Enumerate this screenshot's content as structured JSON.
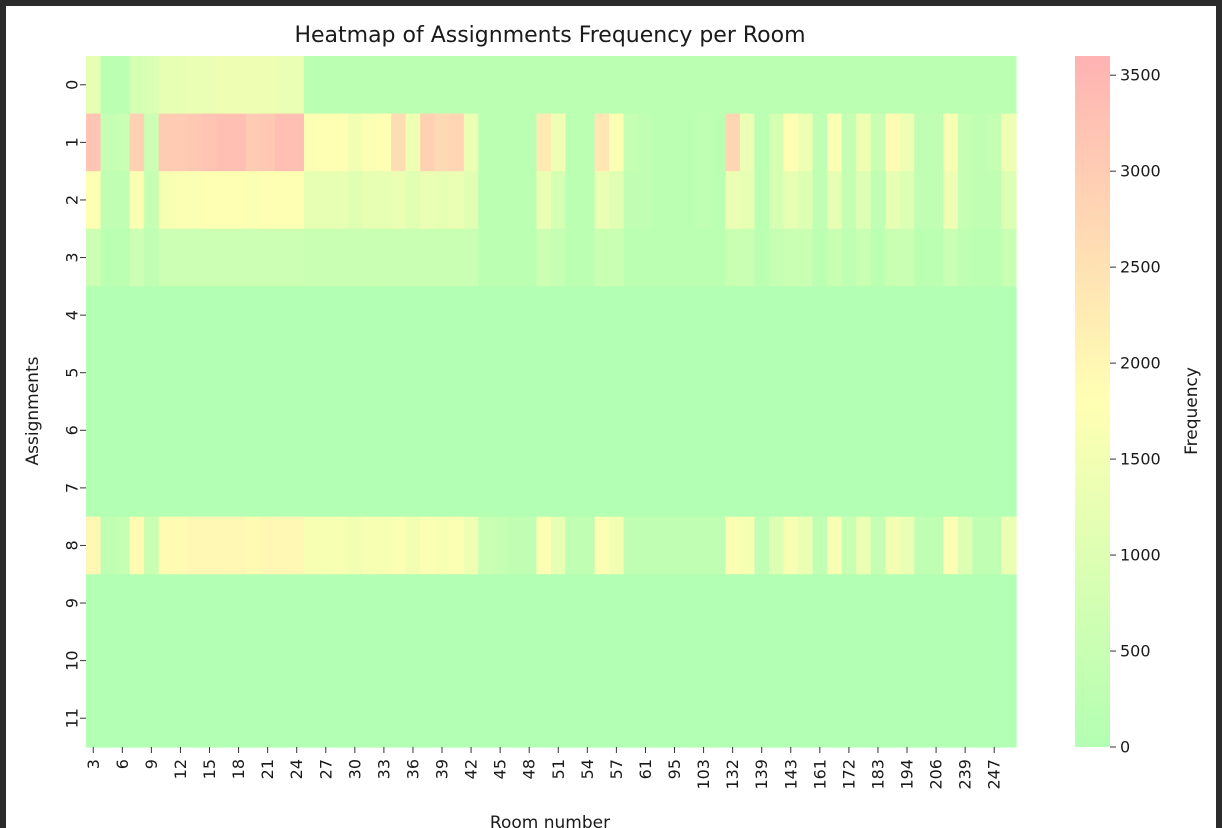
{
  "chart_data": {
    "type": "heatmap",
    "title": "Heatmap of Assignments Frequency per Room",
    "xlabel": "Room number",
    "ylabel": "Assignments",
    "colorbar_label": "Frequency",
    "colorbar_ticks": [
      0,
      500,
      1000,
      1500,
      2000,
      2500,
      3000,
      3500
    ],
    "value_range": [
      0,
      3600
    ],
    "colormap": [
      "#b3ffb3",
      "#ffffb3",
      "#ffb3b3"
    ],
    "x_tick_labels": [
      "3",
      "6",
      "9",
      "12",
      "15",
      "18",
      "21",
      "24",
      "27",
      "30",
      "33",
      "36",
      "39",
      "42",
      "45",
      "48",
      "51",
      "54",
      "57",
      "61",
      "95",
      "103",
      "132",
      "139",
      "143",
      "161",
      "172",
      "183",
      "194",
      "206",
      "239",
      "247"
    ],
    "y_tick_labels": [
      "0",
      "1",
      "2",
      "3",
      "4",
      "5",
      "6",
      "7",
      "8",
      "9",
      "10",
      "11"
    ],
    "columns_count": 64,
    "values": [
      [
        1200,
        200,
        200,
        800,
        900,
        1200,
        1200,
        1300,
        1300,
        1400,
        1400,
        1400,
        1400,
        1300,
        1300,
        200,
        200,
        200,
        200,
        200,
        200,
        200,
        200,
        200,
        200,
        200,
        200,
        200,
        200,
        200,
        200,
        200,
        200,
        200,
        200,
        200,
        200,
        200,
        200,
        200,
        200,
        200,
        200,
        200,
        200,
        200,
        200,
        200,
        200,
        200,
        200,
        200,
        200,
        200,
        200,
        200,
        200,
        200,
        200,
        200,
        200,
        200,
        200,
        200
      ],
      [
        3200,
        400,
        500,
        2900,
        600,
        3000,
        3000,
        3100,
        3200,
        3300,
        3300,
        3000,
        3100,
        3300,
        3300,
        1700,
        1800,
        1800,
        1500,
        1700,
        1800,
        2600,
        1400,
        2900,
        2700,
        2800,
        1300,
        200,
        200,
        200,
        200,
        2300,
        1400,
        200,
        200,
        2400,
        1700,
        400,
        300,
        200,
        200,
        200,
        300,
        200,
        2800,
        1300,
        200,
        800,
        1800,
        1400,
        300,
        1700,
        400,
        1400,
        500,
        1900,
        1400,
        300,
        300,
        1600,
        400,
        300,
        400,
        1400
      ],
      [
        1800,
        300,
        300,
        1700,
        400,
        1600,
        1700,
        1700,
        1800,
        1800,
        1800,
        1700,
        1800,
        1800,
        1800,
        1200,
        1200,
        1200,
        1100,
        1200,
        1200,
        1300,
        1100,
        1300,
        1200,
        1300,
        1100,
        200,
        200,
        200,
        200,
        1300,
        800,
        200,
        200,
        1300,
        1100,
        300,
        300,
        200,
        200,
        200,
        300,
        200,
        1300,
        1200,
        200,
        800,
        1200,
        1000,
        300,
        1200,
        400,
        1000,
        300,
        1200,
        1000,
        300,
        300,
        1400,
        400,
        300,
        300,
        1000
      ],
      [
        600,
        200,
        200,
        600,
        250,
        600,
        600,
        600,
        600,
        600,
        600,
        600,
        600,
        600,
        600,
        500,
        500,
        500,
        500,
        500,
        500,
        500,
        500,
        500,
        500,
        500,
        500,
        200,
        200,
        200,
        200,
        600,
        400,
        200,
        200,
        500,
        500,
        200,
        200,
        200,
        200,
        200,
        200,
        200,
        500,
        500,
        200,
        400,
        500,
        500,
        200,
        500,
        250,
        500,
        200,
        500,
        500,
        200,
        200,
        500,
        250,
        200,
        200,
        500
      ],
      [
        0,
        0,
        0,
        0,
        0,
        0,
        0,
        0,
        0,
        0,
        0,
        0,
        0,
        0,
        0,
        0,
        0,
        0,
        0,
        0,
        0,
        0,
        0,
        0,
        0,
        0,
        0,
        0,
        0,
        0,
        0,
        0,
        0,
        0,
        0,
        0,
        0,
        0,
        0,
        0,
        0,
        0,
        0,
        0,
        0,
        0,
        0,
        0,
        0,
        0,
        0,
        0,
        0,
        0,
        0,
        0,
        0,
        0,
        0,
        0,
        0,
        0,
        0,
        0
      ],
      [
        0,
        0,
        0,
        0,
        0,
        0,
        0,
        0,
        0,
        0,
        0,
        0,
        0,
        0,
        0,
        0,
        0,
        0,
        0,
        0,
        0,
        0,
        0,
        0,
        0,
        0,
        0,
        0,
        0,
        0,
        0,
        0,
        0,
        0,
        0,
        0,
        0,
        0,
        0,
        0,
        0,
        0,
        0,
        0,
        0,
        0,
        0,
        0,
        0,
        0,
        0,
        0,
        0,
        0,
        0,
        0,
        0,
        0,
        0,
        0,
        0,
        0,
        0,
        0
      ],
      [
        0,
        0,
        0,
        0,
        0,
        0,
        0,
        0,
        0,
        0,
        0,
        0,
        0,
        0,
        0,
        0,
        0,
        0,
        0,
        0,
        0,
        0,
        0,
        0,
        0,
        0,
        0,
        0,
        0,
        0,
        0,
        0,
        0,
        0,
        0,
        0,
        0,
        0,
        0,
        0,
        0,
        0,
        0,
        0,
        0,
        0,
        0,
        0,
        0,
        0,
        0,
        0,
        0,
        0,
        0,
        0,
        0,
        0,
        0,
        0,
        0,
        0,
        0,
        0
      ],
      [
        0,
        0,
        0,
        0,
        0,
        0,
        0,
        0,
        0,
        0,
        0,
        0,
        0,
        0,
        0,
        0,
        0,
        0,
        0,
        0,
        0,
        0,
        0,
        0,
        0,
        0,
        0,
        0,
        0,
        0,
        0,
        0,
        0,
        0,
        0,
        0,
        0,
        0,
        0,
        0,
        0,
        0,
        0,
        0,
        0,
        0,
        0,
        0,
        0,
        0,
        0,
        0,
        0,
        0,
        0,
        0,
        0,
        0,
        0,
        0,
        0,
        0,
        0,
        0
      ],
      [
        2000,
        300,
        400,
        1900,
        500,
        1900,
        1900,
        2000,
        2000,
        2000,
        2000,
        1900,
        2000,
        2000,
        2000,
        1600,
        1600,
        1600,
        1500,
        1600,
        1600,
        1700,
        1500,
        1700,
        1600,
        1700,
        1400,
        500,
        400,
        300,
        300,
        1700,
        1200,
        300,
        300,
        1700,
        1500,
        300,
        300,
        300,
        300,
        300,
        300,
        300,
        1700,
        1600,
        300,
        1000,
        1600,
        1300,
        300,
        1600,
        500,
        1300,
        400,
        1500,
        1300,
        300,
        300,
        1700,
        1000,
        300,
        300,
        1300
      ],
      [
        0,
        0,
        0,
        0,
        0,
        0,
        0,
        0,
        0,
        0,
        0,
        0,
        0,
        0,
        0,
        0,
        0,
        0,
        0,
        0,
        0,
        0,
        0,
        0,
        0,
        0,
        0,
        0,
        0,
        0,
        0,
        0,
        0,
        0,
        0,
        0,
        0,
        0,
        0,
        0,
        0,
        0,
        0,
        0,
        0,
        0,
        0,
        0,
        0,
        0,
        0,
        0,
        0,
        0,
        0,
        0,
        0,
        0,
        0,
        0,
        0,
        0,
        0,
        0
      ],
      [
        0,
        0,
        0,
        0,
        0,
        0,
        0,
        0,
        0,
        0,
        0,
        0,
        0,
        0,
        0,
        0,
        0,
        0,
        0,
        0,
        0,
        0,
        0,
        0,
        0,
        0,
        0,
        0,
        0,
        0,
        0,
        0,
        0,
        0,
        0,
        0,
        0,
        0,
        0,
        0,
        0,
        0,
        0,
        0,
        0,
        0,
        0,
        0,
        0,
        0,
        0,
        0,
        0,
        0,
        0,
        0,
        0,
        0,
        0,
        0,
        0,
        0,
        0,
        0
      ],
      [
        0,
        0,
        0,
        0,
        0,
        0,
        0,
        0,
        0,
        0,
        0,
        0,
        0,
        0,
        0,
        0,
        0,
        0,
        0,
        0,
        0,
        0,
        0,
        0,
        0,
        0,
        0,
        0,
        0,
        0,
        0,
        0,
        0,
        0,
        0,
        0,
        0,
        0,
        0,
        0,
        0,
        0,
        0,
        0,
        0,
        0,
        0,
        0,
        0,
        0,
        0,
        0,
        0,
        0,
        0,
        0,
        0,
        0,
        0,
        0,
        0,
        0,
        0,
        0
      ]
    ]
  }
}
